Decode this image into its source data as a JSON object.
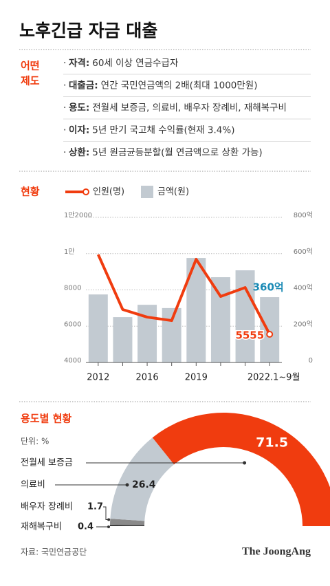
{
  "title": "노후긴급 자금 대출",
  "section1": {
    "label": [
      "어떤",
      "제도"
    ],
    "items": [
      {
        "key": "자격:",
        "text": "60세 이상 연금수급자"
      },
      {
        "key": "대출금:",
        "text": "연간 국민연금액의 2배(최대 1000만원)"
      },
      {
        "key": "용도:",
        "text": "전월세 보증금, 의료비, 배우자 장례비, 재해복구비"
      },
      {
        "key": "이자:",
        "text": "5년 만기 국고채 수익률(현재 3.4%)"
      },
      {
        "key": "상환:",
        "text": "5년 원금균등분할(월 연금액으로 상환 가능)"
      }
    ]
  },
  "chart_data": [
    {
      "type": "combo",
      "title": "현황",
      "categories": [
        "2012",
        null,
        "2016",
        null,
        "2019",
        null,
        null,
        "2022.1~9월"
      ],
      "series": [
        {
          "name": "인원(명)",
          "type": "line",
          "color": "#f03c0f",
          "values": [
            9950,
            6920,
            6500,
            6310,
            9690,
            7640,
            8130,
            5555
          ],
          "value_labels": [
            null,
            null,
            null,
            null,
            null,
            null,
            null,
            "5555"
          ]
        },
        {
          "name": "금액(원)",
          "type": "bar",
          "axis": "y2",
          "color": "#c2cad1",
          "values": [
            375,
            250,
            318,
            300,
            576,
            470,
            508,
            360
          ],
          "value_labels": [
            null,
            null,
            null,
            null,
            null,
            null,
            null,
            "360억"
          ]
        }
      ],
      "ylim": [
        4000,
        12000
      ],
      "yticks": [
        4000,
        6000,
        8000,
        {
          "value": 10000,
          "label": "1만"
        },
        {
          "value": 12000,
          "label": "1만2000"
        }
      ],
      "y2lim": [
        0,
        800
      ],
      "y2ticks": [
        0,
        {
          "value": 200,
          "label": "200억"
        },
        {
          "value": 400,
          "label": "400억"
        },
        {
          "value": 600,
          "label": "600억"
        },
        {
          "value": 800,
          "label": "800억"
        }
      ],
      "grid": true
    },
    {
      "type": "semi-donut",
      "title": "용도별 현황",
      "subtitle": "단위: %",
      "categories": [
        "전월세 보증금",
        "의료비",
        "배우자 장례비",
        "재해복구비"
      ],
      "values": [
        71.5,
        26.4,
        1.7,
        0.4
      ],
      "colors": [
        "#f03c0f",
        "#c2cad1",
        "#8a8a8a",
        "#3a3a3a"
      ]
    }
  ],
  "source": "자료: 국민연금공단",
  "brand": "The JoongAng"
}
